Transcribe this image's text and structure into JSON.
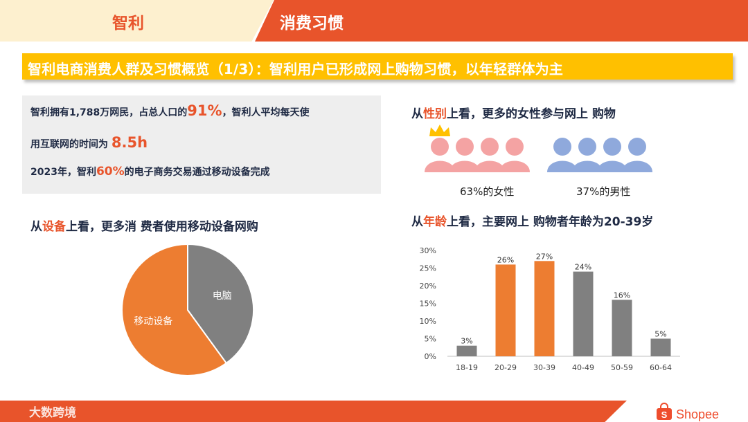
{
  "header": {
    "left_tab": "智利",
    "right_tab": "消费习惯"
  },
  "banner": {
    "title": "智利电商消费人群及习惯概览（1/3）：智利用户已形成网上购物习惯，以年轻群体为主"
  },
  "info": {
    "line1_a": "智利拥有1,788万网民，占总人口的",
    "line1_hl": "91%",
    "line1_b": "，智利人平均每天使",
    "line2_a": "用互联网的时间为",
    "line2_hl": "8.5h",
    "line3_a": "2023年，智利",
    "line3_hl": "60%",
    "line3_b": "的电子商务交易通过移动设备完成"
  },
  "gender": {
    "title_pre": "从",
    "title_hl": "性别",
    "title_post": "上看，更多的女性参与网上 购物",
    "female_caption": "63%的女性",
    "male_caption": "37%的男性",
    "female_color": "#f4a3a3",
    "male_color": "#8fa9dc",
    "crown_color": "#ffc000"
  },
  "device": {
    "title_pre": "从",
    "title_hl": "设备",
    "title_post": "上看，更多消 费者使用移动设备网购"
  },
  "age": {
    "title_pre": "从",
    "title_hl": "年龄",
    "title_post": "上看，主要网上 购物者年龄为20-39岁"
  },
  "footer": {
    "left_text": "大数跨境",
    "brand": "Shopee"
  },
  "chart_data": [
    {
      "type": "pie",
      "labels": [
        "移动设备",
        "电脑"
      ],
      "values": [
        60,
        40
      ],
      "colors": [
        "#ed7d31",
        "#808080"
      ]
    },
    {
      "type": "bar",
      "categories": [
        "18-19",
        "20-29",
        "30-39",
        "40-49",
        "50-59",
        "60-64"
      ],
      "values": [
        3,
        26,
        27,
        24,
        16,
        5
      ],
      "data_labels": [
        "3%",
        "26%",
        "27%",
        "24%",
        "16%",
        "5%"
      ],
      "highlight": [
        false,
        true,
        true,
        false,
        false,
        false
      ],
      "colors": {
        "normal": "#808080",
        "highlight": "#ed7d31"
      },
      "ylim": [
        0,
        30
      ],
      "yticks": [
        "0%",
        "5%",
        "10%",
        "15%",
        "20%",
        "25%",
        "30%"
      ],
      "grid": false
    }
  ]
}
